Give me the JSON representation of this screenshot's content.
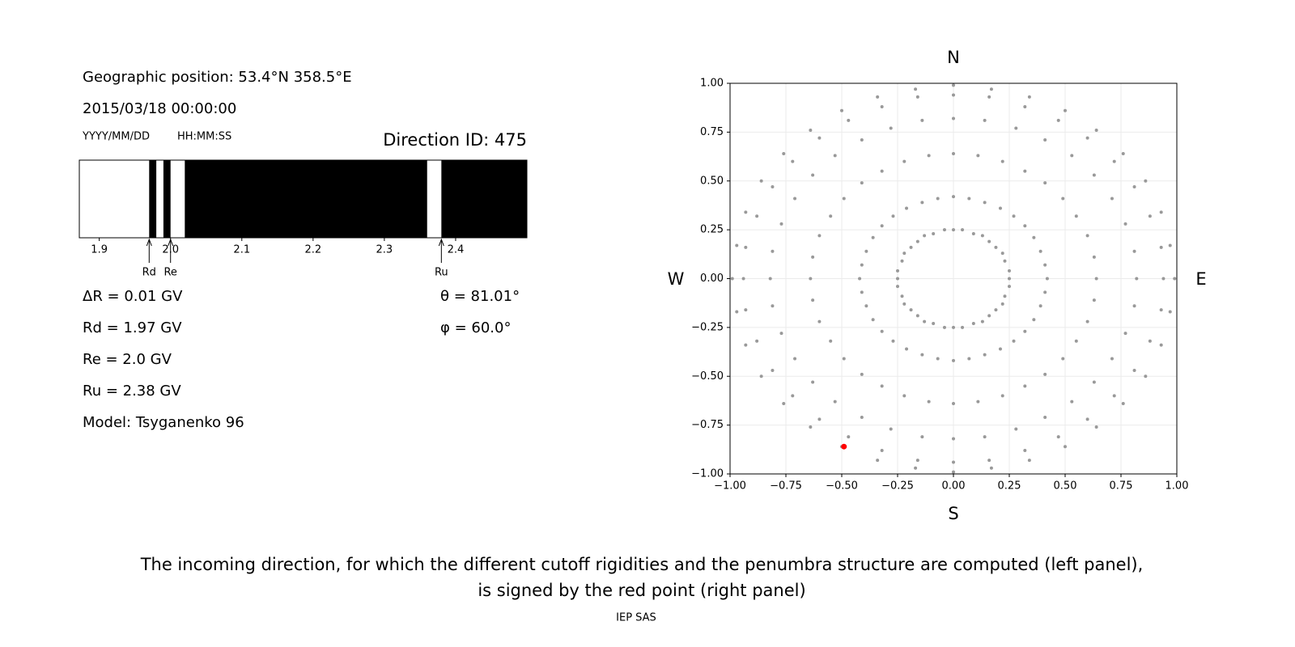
{
  "info": {
    "position": "Geographic position: 53.4°N 358.5°E",
    "datetime": "2015/03/18 00:00:00",
    "date_format": "YYYY/MM/DD",
    "time_format": "HH:MM:SS",
    "direction_id": "Direction ID: 475",
    "delta_r": "ΔR = 0.01 GV",
    "rd": "Rd = 1.97 GV",
    "re": "Re = 2.0 GV",
    "ru": "Ru = 2.38 GV",
    "model": "Model: Tsyganenko 96",
    "theta": "θ = 81.01°",
    "phi": "φ = 60.0°",
    "caption": [
      "The incoming direction, for which the different cutoff rigidities and the penumbra structure are computed (left panel),",
      "is signed by the red point (right panel)"
    ],
    "footer": "IEP SAS"
  },
  "chart_data": [
    {
      "type": "penumbra",
      "color": "#000000",
      "xlim": [
        1.872,
        2.5
      ],
      "xticks": [
        1.9,
        {
          "value": 2,
          "label": "2.0"
        },
        2.1,
        2.2,
        2.3,
        2.4
      ],
      "forbidden": [
        {
          "start": 1.97,
          "end": 1.98
        },
        {
          "start": 1.99,
          "end": 2.0
        },
        {
          "start": 2.02,
          "end": 2.36
        },
        {
          "start": 2.38,
          "end": 2.5
        }
      ],
      "markers": [
        {
          "label": "Rd",
          "value": 1.97
        },
        {
          "label": "Re",
          "value": 2.0
        },
        {
          "label": "Ru",
          "value": 2.38
        }
      ]
    },
    {
      "type": "scatter",
      "color": "#999999",
      "grid": true,
      "compass": {
        "top": "N",
        "bottom": "S",
        "left": "W",
        "right": "E"
      },
      "xlim": [
        -1,
        1
      ],
      "ylim": [
        -1,
        1
      ],
      "xticks": [
        {
          "value": -1,
          "label": "−1.00"
        },
        {
          "value": -0.75,
          "label": "−0.75"
        },
        {
          "value": -0.5,
          "label": "−0.50"
        },
        {
          "value": -0.25,
          "label": "−0.25"
        },
        {
          "value": 0,
          "label": "0.00"
        },
        {
          "value": 0.25,
          "label": "0.25"
        },
        {
          "value": 0.5,
          "label": "0.50"
        },
        {
          "value": 0.75,
          "label": "0.75"
        },
        {
          "value": 1,
          "label": "1.00"
        }
      ],
      "yticks": [
        {
          "value": -1,
          "label": "−1.00"
        },
        {
          "value": -0.75,
          "label": "−0.75"
        },
        {
          "value": -0.5,
          "label": "−0.50"
        },
        {
          "value": -0.25,
          "label": "−0.25"
        },
        {
          "value": 0,
          "label": "0.00"
        },
        {
          "value": 0.25,
          "label": "0.25"
        },
        {
          "value": 0.5,
          "label": "0.50"
        },
        {
          "value": 0.75,
          "label": "0.75"
        },
        {
          "value": 1,
          "label": "1.00"
        }
      ],
      "series": [
        {
          "x": [
            0,
            0.04,
            0.09,
            0.13,
            0.16,
            0.19,
            0.22,
            0.23,
            0.25,
            0.25,
            0.25,
            0.23,
            0.22,
            0.19,
            0.16,
            0.13,
            0.09,
            0.04,
            0,
            -0.04,
            -0.09,
            -0.13,
            -0.16,
            -0.19,
            -0.22,
            -0.23,
            -0.25,
            -0.25,
            -0.25,
            -0.23,
            -0.22,
            -0.19,
            -0.16,
            -0.13,
            -0.09,
            -0.04
          ],
          "y": [
            0.25,
            0.25,
            0.23,
            0.22,
            0.19,
            0.16,
            0.13,
            0.09,
            0.04,
            0,
            -0.04,
            -0.09,
            -0.13,
            -0.16,
            -0.19,
            -0.22,
            -0.23,
            -0.25,
            -0.25,
            -0.25,
            -0.23,
            -0.22,
            -0.19,
            -0.16,
            -0.13,
            -0.09,
            -0.04,
            0,
            0.04,
            0.09,
            0.13,
            0.16,
            0.19,
            0.22,
            0.23,
            0.25
          ]
        },
        {
          "x": [
            0,
            0.07,
            0.14,
            0.21,
            0.27,
            0.32,
            0.36,
            0.39,
            0.41,
            0.42,
            0.41,
            0.39,
            0.36,
            0.32,
            0.27,
            0.21,
            0.14,
            0.07,
            0,
            -0.07,
            -0.14,
            -0.21,
            -0.27,
            -0.32,
            -0.36,
            -0.39,
            -0.41,
            -0.42,
            -0.41,
            -0.39,
            -0.36,
            -0.32,
            -0.27,
            -0.21,
            -0.14,
            -0.07
          ],
          "y": [
            0.42,
            0.41,
            0.39,
            0.36,
            0.32,
            0.27,
            0.21,
            0.14,
            0.07,
            0,
            -0.07,
            -0.14,
            -0.21,
            -0.27,
            -0.32,
            -0.36,
            -0.39,
            -0.41,
            -0.42,
            -0.41,
            -0.39,
            -0.36,
            -0.32,
            -0.27,
            -0.21,
            -0.14,
            -0.07,
            0,
            0.07,
            0.14,
            0.21,
            0.27,
            0.32,
            0.36,
            0.39,
            0.41
          ]
        },
        {
          "x": [
            0,
            0.11,
            0.22,
            0.32,
            0.41,
            0.49,
            0.55,
            0.6,
            0.63,
            0.64,
            0.63,
            0.6,
            0.55,
            0.49,
            0.41,
            0.32,
            0.22,
            0.11,
            0,
            -0.11,
            -0.22,
            -0.32,
            -0.41,
            -0.49,
            -0.55,
            -0.6,
            -0.63,
            -0.64,
            -0.63,
            -0.6,
            -0.55,
            -0.49,
            -0.41,
            -0.32,
            -0.22,
            -0.11
          ],
          "y": [
            0.64,
            0.63,
            0.6,
            0.55,
            0.49,
            0.41,
            0.32,
            0.22,
            0.11,
            0,
            -0.11,
            -0.22,
            -0.32,
            -0.41,
            -0.49,
            -0.55,
            -0.6,
            -0.63,
            -0.64,
            -0.63,
            -0.6,
            -0.55,
            -0.49,
            -0.41,
            -0.32,
            -0.22,
            -0.11,
            0,
            0.11,
            0.22,
            0.32,
            0.41,
            0.49,
            0.55,
            0.6,
            0.63
          ]
        },
        {
          "x": [
            0,
            0.14,
            0.28,
            0.41,
            0.53,
            0.63,
            0.71,
            0.77,
            0.81,
            0.82,
            0.81,
            0.77,
            0.71,
            0.63,
            0.53,
            0.41,
            0.28,
            0.14,
            0,
            -0.14,
            -0.28,
            -0.41,
            -0.53,
            -0.63,
            -0.71,
            -0.77,
            -0.81,
            -0.82,
            -0.81,
            -0.77,
            -0.71,
            -0.63,
            -0.53,
            -0.41,
            -0.28,
            -0.14
          ],
          "y": [
            0.82,
            0.81,
            0.77,
            0.71,
            0.63,
            0.53,
            0.41,
            0.28,
            0.14,
            0,
            -0.14,
            -0.28,
            -0.41,
            -0.53,
            -0.63,
            -0.71,
            -0.77,
            -0.81,
            -0.82,
            -0.81,
            -0.77,
            -0.71,
            -0.63,
            -0.53,
            -0.41,
            -0.28,
            -0.14,
            0,
            0.14,
            0.28,
            0.41,
            0.53,
            0.63,
            0.71,
            0.77,
            0.81
          ]
        },
        {
          "x": [
            0,
            0.16,
            0.32,
            0.47,
            0.6,
            0.72,
            0.81,
            0.88,
            0.93,
            0.94,
            0.93,
            0.88,
            0.81,
            0.72,
            0.6,
            0.47,
            0.32,
            0.16,
            0,
            -0.16,
            -0.32,
            -0.47,
            -0.6,
            -0.72,
            -0.81,
            -0.88,
            -0.93,
            -0.94,
            -0.93,
            -0.88,
            -0.81,
            -0.72,
            -0.6,
            -0.47,
            -0.32,
            -0.16
          ],
          "y": [
            0.94,
            0.93,
            0.88,
            0.81,
            0.72,
            0.6,
            0.47,
            0.32,
            0.16,
            0,
            -0.16,
            -0.32,
            -0.47,
            -0.6,
            -0.72,
            -0.81,
            -0.88,
            -0.93,
            -0.94,
            -0.93,
            -0.88,
            -0.81,
            -0.72,
            -0.6,
            -0.47,
            -0.32,
            -0.16,
            0,
            0.16,
            0.32,
            0.47,
            0.6,
            0.72,
            0.81,
            0.88,
            0.93
          ]
        },
        {
          "x": [
            0,
            0.17,
            0.34,
            0.5,
            0.64,
            0.76,
            0.86,
            0.93,
            0.97,
            0.99,
            0.97,
            0.93,
            0.86,
            0.76,
            0.64,
            0.5,
            0.34,
            0.17,
            0,
            -0.17,
            -0.34,
            -0.5,
            -0.64,
            -0.76,
            -0.86,
            -0.93,
            -0.97,
            -0.99,
            -0.97,
            -0.93,
            -0.86,
            -0.76,
            -0.64,
            -0.5,
            -0.34,
            -0.17
          ],
          "y": [
            0.99,
            0.97,
            0.93,
            0.86,
            0.76,
            0.64,
            0.5,
            0.34,
            0.17,
            0,
            -0.17,
            -0.34,
            -0.5,
            -0.64,
            -0.76,
            -0.86,
            -0.93,
            -0.97,
            -0.99,
            -0.97,
            -0.93,
            -0.86,
            -0.76,
            -0.64,
            -0.5,
            -0.34,
            -0.17,
            0,
            0.17,
            0.34,
            0.5,
            0.64,
            0.76,
            0.86,
            0.93,
            0.97
          ]
        }
      ],
      "highlight": {
        "x": -0.49,
        "y": -0.86,
        "color": "#ff0000"
      }
    }
  ]
}
